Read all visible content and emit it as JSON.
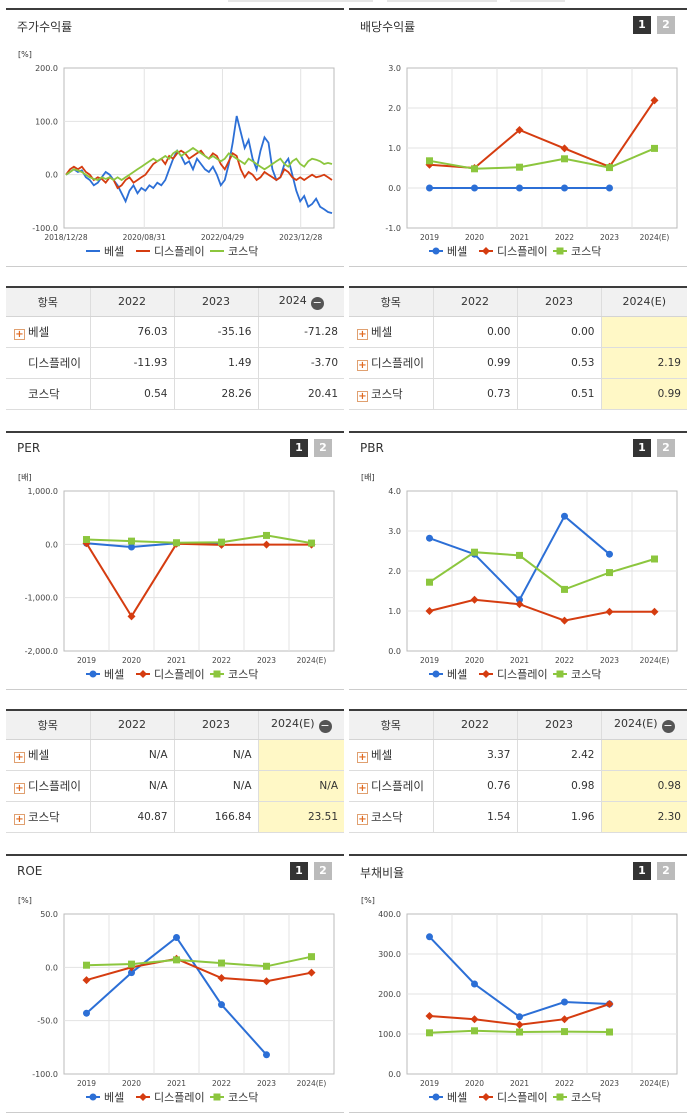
{
  "panels": [
    {
      "id": "p1",
      "title": "주가수익률",
      "buttons": false
    },
    {
      "id": "p2",
      "title": "배당수익률",
      "buttons": true
    },
    {
      "id": "p3",
      "title": "PER",
      "buttons": true
    },
    {
      "id": "p4",
      "title": "PBR",
      "buttons": true
    },
    {
      "id": "p5",
      "title": "ROE",
      "buttons": true
    },
    {
      "id": "p6",
      "title": "부채비율",
      "buttons": true
    }
  ],
  "buttons": {
    "one": "1",
    "two": "2"
  },
  "legend": {
    "s1": "베셀",
    "s2": "디스플레이",
    "s3": "코스닥"
  },
  "colors": {
    "s1": "#2c6fd6",
    "s2": "#d53c10",
    "s3": "#8cc63e"
  },
  "chart_data": [
    {
      "id": "p1",
      "type": "line",
      "title": "주가수익률",
      "ylabel": "[%]",
      "ylim": [
        -100,
        200
      ],
      "yticks": [
        "200.0",
        "100.0",
        "0.0",
        "-100.0"
      ],
      "xticks": [
        "2018/12/28",
        "2020/08/31",
        "2022/04/29",
        "2023/12/28"
      ],
      "series": [
        {
          "name": "베셀",
          "values": [
            0,
            5,
            10,
            5,
            8,
            -5,
            -10,
            -20,
            -15,
            -5,
            5,
            0,
            -10,
            -20,
            -35,
            -50,
            -30,
            -20,
            -35,
            -25,
            -30,
            -20,
            -25,
            -15,
            -20,
            -10,
            10,
            30,
            45,
            35,
            20,
            25,
            10,
            30,
            20,
            10,
            5,
            15,
            0,
            -20,
            -10,
            20,
            60,
            110,
            80,
            50,
            65,
            30,
            10,
            45,
            70,
            60,
            10,
            -10,
            -5,
            20,
            30,
            0,
            -30,
            -50,
            -40,
            -60,
            -55,
            -45,
            -60,
            -65,
            -70,
            -72
          ]
        },
        {
          "name": "디스플레이",
          "values": [
            0,
            10,
            15,
            10,
            15,
            5,
            0,
            -10,
            -5,
            -8,
            -15,
            -5,
            -10,
            -25,
            -20,
            -10,
            -5,
            -15,
            -10,
            -5,
            0,
            10,
            20,
            25,
            30,
            20,
            35,
            30,
            40,
            45,
            40,
            30,
            35,
            40,
            45,
            35,
            30,
            40,
            35,
            20,
            10,
            25,
            40,
            35,
            10,
            -5,
            5,
            0,
            -10,
            -5,
            5,
            0,
            -5,
            -10,
            -5,
            10,
            5,
            -5,
            -10,
            -5,
            -10,
            -5,
            0,
            -5,
            -3,
            0,
            -5,
            -10
          ]
        },
        {
          "name": "코스닥",
          "values": [
            0,
            5,
            10,
            8,
            5,
            0,
            -5,
            -8,
            -10,
            -5,
            -8,
            -5,
            -10,
            -5,
            -10,
            -5,
            0,
            5,
            10,
            15,
            20,
            25,
            30,
            25,
            30,
            35,
            30,
            40,
            45,
            35,
            40,
            45,
            50,
            45,
            40,
            35,
            30,
            35,
            30,
            25,
            30,
            40,
            35,
            30,
            25,
            20,
            30,
            25,
            20,
            15,
            10,
            15,
            20,
            25,
            30,
            20,
            15,
            25,
            30,
            20,
            15,
            25,
            30,
            28,
            25,
            20,
            22,
            20
          ]
        }
      ]
    },
    {
      "id": "p2",
      "type": "line",
      "title": "배당수익률",
      "ylabel": "",
      "ylim": [
        -1,
        3
      ],
      "yticks": [
        "3.0",
        "2.0",
        "1.0",
        "0.0",
        "-1.0"
      ],
      "categories": [
        "2019",
        "2020",
        "2021",
        "2022",
        "2023",
        "2024(E)"
      ],
      "series": [
        {
          "name": "베셀",
          "values": [
            0.0,
            0.0,
            0.0,
            0.0,
            0.0,
            null
          ]
        },
        {
          "name": "디스플레이",
          "values": [
            0.58,
            0.5,
            1.45,
            0.99,
            0.53,
            2.19
          ]
        },
        {
          "name": "코스닥",
          "values": [
            0.68,
            0.48,
            0.52,
            0.73,
            0.51,
            0.99
          ]
        }
      ]
    },
    {
      "id": "p3",
      "type": "line",
      "title": "PER",
      "ylabel": "[배]",
      "ylim": [
        -2000,
        1000
      ],
      "yticks": [
        "1,000.0",
        "0.0",
        "-1,000.0",
        "-2,000.0"
      ],
      "categories": [
        "2019",
        "2020",
        "2021",
        "2022",
        "2023",
        "2024(E)"
      ],
      "series": [
        {
          "name": "베셀",
          "values": [
            20,
            -50,
            20,
            10,
            null,
            null
          ]
        },
        {
          "name": "디스플레이",
          "values": [
            20,
            -1350,
            10,
            -10,
            -5,
            -5
          ]
        },
        {
          "name": "코스닥",
          "values": [
            90,
            60,
            30,
            40.87,
            166.84,
            23.51
          ]
        }
      ]
    },
    {
      "id": "p4",
      "type": "line",
      "title": "PBR",
      "ylabel": "[배]",
      "ylim": [
        0,
        4
      ],
      "yticks": [
        "4.0",
        "3.0",
        "2.0",
        "1.0",
        "0.0"
      ],
      "categories": [
        "2019",
        "2020",
        "2021",
        "2022",
        "2023",
        "2024(E)"
      ],
      "series": [
        {
          "name": "베셀",
          "values": [
            2.82,
            2.42,
            1.28,
            3.37,
            2.42,
            null
          ]
        },
        {
          "name": "디스플레이",
          "values": [
            1.0,
            1.28,
            1.17,
            0.76,
            0.98,
            0.98
          ]
        },
        {
          "name": "코스닥",
          "values": [
            1.72,
            2.47,
            2.39,
            1.54,
            1.96,
            2.3
          ]
        }
      ]
    },
    {
      "id": "p5",
      "type": "line",
      "title": "ROE",
      "ylabel": "[%]",
      "ylim": [
        -100,
        50
      ],
      "yticks": [
        "50.0",
        "0.0",
        "-50.0",
        "-100.0"
      ],
      "categories": [
        "2019",
        "2020",
        "2021",
        "2022",
        "2023",
        "2024(E)"
      ],
      "series": [
        {
          "name": "베셀",
          "values": [
            -43,
            -5,
            28,
            -35,
            -82,
            null
          ]
        },
        {
          "name": "디스플레이",
          "values": [
            -12,
            0,
            8,
            -10,
            -13,
            -5
          ]
        },
        {
          "name": "코스닥",
          "values": [
            2,
            3,
            7,
            4,
            1,
            10
          ]
        }
      ]
    },
    {
      "id": "p6",
      "type": "line",
      "title": "부채비율",
      "ylabel": "[%]",
      "ylim": [
        0,
        400
      ],
      "yticks": [
        "400.0",
        "300.0",
        "200.0",
        "100.0",
        "0.0"
      ],
      "categories": [
        "2019",
        "2020",
        "2021",
        "2022",
        "2023",
        "2024(E)"
      ],
      "series": [
        {
          "name": "베셀",
          "values": [
            343,
            225,
            143,
            180,
            175,
            null
          ]
        },
        {
          "name": "디스플레이",
          "values": [
            145,
            137,
            123,
            137,
            175,
            null
          ]
        },
        {
          "name": "코스닥",
          "values": [
            103,
            108,
            105,
            106,
            105,
            null
          ]
        }
      ]
    }
  ],
  "tables": [
    {
      "id": "t1",
      "head": [
        "항목",
        "2022",
        "2023",
        "2024"
      ],
      "minus": true,
      "estcol": false,
      "rows": [
        {
          "label": "베셀",
          "plus": true,
          "cells": [
            "76.03",
            "-35.16",
            "-71.28"
          ]
        },
        {
          "label": "디스플레이",
          "plus": false,
          "cells": [
            "-11.93",
            "1.49",
            "-3.70"
          ]
        },
        {
          "label": "코스닥",
          "plus": false,
          "cells": [
            "0.54",
            "28.26",
            "20.41"
          ]
        }
      ]
    },
    {
      "id": "t2",
      "head": [
        "항목",
        "2022",
        "2023",
        "2024(E)"
      ],
      "minus": false,
      "estcol": true,
      "rows": [
        {
          "label": "베셀",
          "plus": true,
          "cells": [
            "0.00",
            "0.00",
            ""
          ]
        },
        {
          "label": "디스플레이",
          "plus": true,
          "cells": [
            "0.99",
            "0.53",
            "2.19"
          ]
        },
        {
          "label": "코스닥",
          "plus": true,
          "cells": [
            "0.73",
            "0.51",
            "0.99"
          ]
        }
      ]
    },
    {
      "id": "t3",
      "head": [
        "항목",
        "2022",
        "2023",
        "2024(E)"
      ],
      "minus": true,
      "estcol": true,
      "rows": [
        {
          "label": "베셀",
          "plus": true,
          "cells": [
            "N/A",
            "N/A",
            ""
          ]
        },
        {
          "label": "디스플레이",
          "plus": true,
          "cells": [
            "N/A",
            "N/A",
            "N/A"
          ]
        },
        {
          "label": "코스닥",
          "plus": true,
          "cells": [
            "40.87",
            "166.84",
            "23.51"
          ]
        }
      ]
    },
    {
      "id": "t4",
      "head": [
        "항목",
        "2022",
        "2023",
        "2024(E)"
      ],
      "minus": true,
      "estcol": true,
      "rows": [
        {
          "label": "베셀",
          "plus": true,
          "cells": [
            "3.37",
            "2.42",
            ""
          ]
        },
        {
          "label": "디스플레이",
          "plus": true,
          "cells": [
            "0.76",
            "0.98",
            "0.98"
          ]
        },
        {
          "label": "코스닥",
          "plus": true,
          "cells": [
            "1.54",
            "1.96",
            "2.30"
          ]
        }
      ]
    }
  ]
}
